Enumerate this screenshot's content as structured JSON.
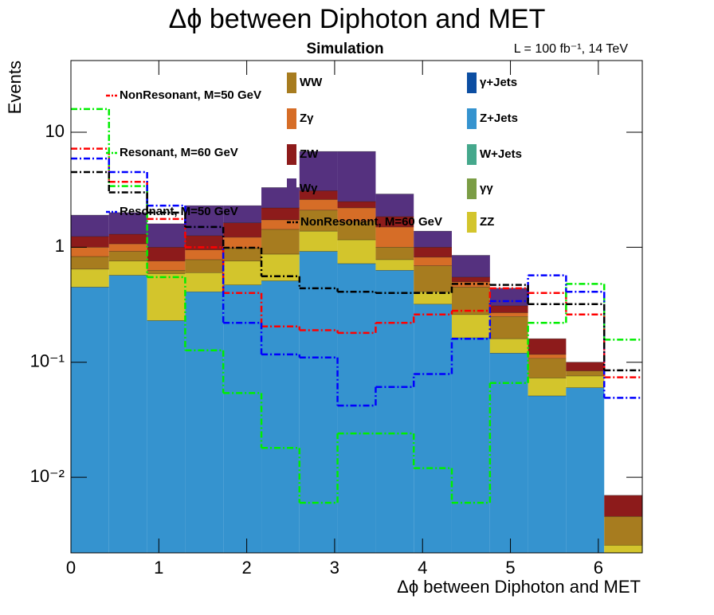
{
  "chart_data": {
    "type": "stacked-histogram",
    "title": "Δϕ between Diphoton and MET",
    "subtitle": "Simulation",
    "annotation": "L = 100 fb⁻¹, 14 TeV",
    "x_label": "Δϕ between Diphoton and MET",
    "y_label": "Events",
    "log_y": true,
    "bins": [
      0,
      0.433,
      0.867,
      1.3,
      1.733,
      2.167,
      2.6,
      3.033,
      3.467,
      3.9,
      4.333,
      4.767,
      5.2,
      5.633,
      6.067,
      6.5
    ],
    "xlim": [
      0,
      6.5
    ],
    "xticks": [
      0,
      1,
      2,
      3,
      4,
      5,
      6
    ],
    "ylim": [
      0.0022,
      42
    ],
    "yticks": [
      {
        "value": 0.01,
        "label": "10⁻²"
      },
      {
        "value": 0.1,
        "label": "10⁻¹"
      },
      1,
      10
    ],
    "series": [
      {
        "name": "Z+Jets",
        "color": "#3593cf",
        "values": [
          0.45,
          0.57,
          0.23,
          0.41,
          0.47,
          0.51,
          0.92,
          0.72,
          0.63,
          0.32,
          0.163,
          0.12,
          0.051,
          0.06,
          0
        ]
      },
      {
        "name": "ZZ",
        "color": "#d3c52c",
        "values": [
          0.195,
          0.19,
          0.36,
          0.19,
          0.29,
          0.36,
          0.46,
          0.44,
          0.15,
          0.09,
          0.097,
          0.04,
          0.022,
          0.016,
          0.00256
        ]
      },
      {
        "name": "γγ",
        "color": "#7b9d45",
        "values": [
          0,
          0,
          0,
          0,
          0,
          0,
          0,
          0,
          0,
          0,
          0,
          0,
          0,
          0,
          0
        ]
      },
      {
        "name": "W+Jets",
        "color": "#45a88c",
        "values": [
          0,
          0,
          0,
          0,
          0,
          0,
          0,
          0,
          0,
          0,
          0,
          0,
          0,
          0,
          0
        ]
      },
      {
        "name": "γ+Jets",
        "color": "#0c4ea2",
        "values": [
          0,
          0,
          0,
          0,
          0,
          0,
          0,
          0,
          0,
          0,
          0,
          0,
          0,
          0,
          0
        ]
      },
      {
        "name": "WW",
        "color": "#a77c1f",
        "values": [
          0.185,
          0.16,
          0.04,
          0.18,
          0.22,
          0.56,
          0.72,
          0.52,
          0.22,
          0.28,
          0.19,
          0.09,
          0.035,
          0.008,
          0.002
        ]
      },
      {
        "name": "Zγ",
        "color": "#d66d27",
        "values": [
          0.17,
          0.15,
          0.13,
          0.17,
          0.24,
          0.3,
          0.5,
          0.52,
          0.5,
          0.13,
          0.05,
          0.02,
          0.009,
          0,
          0
        ]
      },
      {
        "name": "ZW",
        "color": "#8d1b1b",
        "values": [
          0.24,
          0.23,
          0.24,
          0.31,
          0.41,
          0.47,
          0.5,
          0.3,
          0.35,
          0.18,
          0.05,
          0.04,
          0.043,
          0.016,
          0.0024
        ]
      },
      {
        "name": "Wγ",
        "color": "#55317f",
        "values": [
          0.66,
          0.7,
          0.6,
          1.04,
          0.67,
          1.1,
          3.7,
          4.3,
          1.05,
          0.38,
          0.3,
          0.13,
          0,
          0,
          0
        ]
      }
    ],
    "overlays": [
      {
        "name": "NonResonant, M=50 GeV",
        "color": "#ff0000",
        "values": [
          7.2,
          3.7,
          1.76,
          1.0,
          0.4,
          0.205,
          0.19,
          0.18,
          0.22,
          0.26,
          0.28,
          0.44,
          0.4,
          0.26,
          0.074
        ]
      },
      {
        "name": "Resonant, M=60 GeV",
        "color": "#00ee00",
        "values": [
          15.9,
          3.4,
          0.55,
          0.127,
          0.054,
          0.018,
          0.006,
          0.024,
          0.024,
          0.012,
          0.006,
          0.066,
          0.22,
          0.48,
          0.157
        ]
      },
      {
        "name": "Resonant, M=50 GeV",
        "color": "#0000ff",
        "values": [
          5.9,
          4.5,
          2.3,
          1.5,
          0.22,
          0.117,
          0.11,
          0.042,
          0.061,
          0.079,
          0.16,
          0.34,
          0.57,
          0.41,
          0.049
        ]
      },
      {
        "name": "NonResonant, M=60 GeV",
        "color": "#000000",
        "values": [
          4.5,
          3.0,
          2.0,
          1.5,
          0.99,
          0.56,
          0.44,
          0.41,
          0.4,
          0.4,
          0.48,
          0.47,
          0.32,
          0.32,
          0.085
        ]
      }
    ]
  }
}
